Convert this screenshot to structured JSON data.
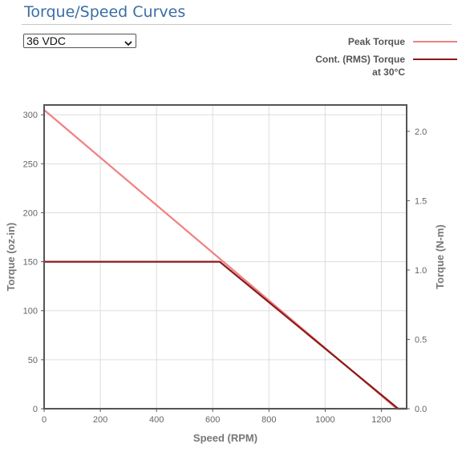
{
  "header": {
    "title": "Torque/Speed Curves"
  },
  "voltage_select": {
    "selected": "36 VDC",
    "icon": "chevron-down-icon"
  },
  "legend": {
    "peak_label": "Peak Torque",
    "cont_label_line1": "Cont. (RMS) Torque",
    "cont_label_line2": "at 30°C"
  },
  "colors": {
    "peak": "#f08080",
    "cont": "#8b1a1a",
    "title": "#3a6ea5",
    "axis": "#666666",
    "grid": "#dddddd"
  },
  "chart_data": {
    "type": "line",
    "xlabel": "Speed (RPM)",
    "ylabel": "Torque (oz-in)",
    "y2label": "Torque (N-m)",
    "xlim": [
      0,
      1290
    ],
    "ylim": [
      0,
      310
    ],
    "y2lim": [
      0,
      2.19
    ],
    "xticks": [
      0,
      200,
      400,
      600,
      800,
      1000,
      1200
    ],
    "yticks": [
      0,
      50,
      100,
      150,
      200,
      250,
      300
    ],
    "y2ticks": [
      "0.0",
      "0.5",
      "1.0",
      "1.5",
      "2.0"
    ],
    "y2tick_values": [
      0,
      0.5,
      1.0,
      1.5,
      2.0
    ],
    "grid": true,
    "legend_position": "top-right",
    "series": [
      {
        "name": "Peak Torque",
        "color": "#f08080",
        "x": [
          0,
          1255,
          1290
        ],
        "y": [
          305,
          0,
          0
        ]
      },
      {
        "name": "Cont. (RMS) Torque at 30°C",
        "color": "#8b1a1a",
        "x": [
          0,
          625,
          1260,
          1290
        ],
        "y": [
          150,
          150,
          0,
          0
        ]
      }
    ]
  }
}
